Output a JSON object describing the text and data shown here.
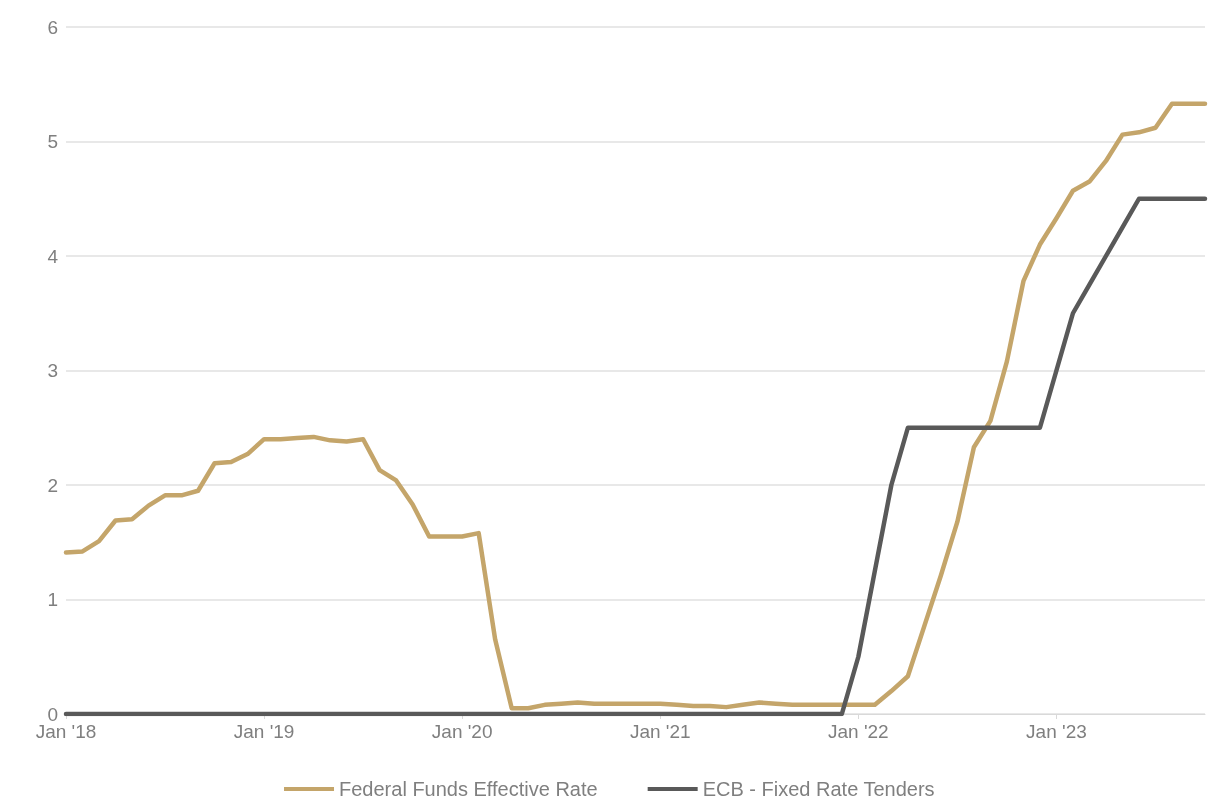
{
  "chart_data": {
    "type": "line",
    "categories": [
      "Jan '18",
      null,
      null,
      null,
      null,
      null,
      null,
      null,
      null,
      null,
      null,
      null,
      "Jan '19",
      null,
      null,
      null,
      null,
      null,
      null,
      null,
      null,
      null,
      null,
      null,
      "Jan '20",
      null,
      null,
      null,
      null,
      null,
      null,
      null,
      null,
      null,
      null,
      null,
      "Jan '21",
      null,
      null,
      null,
      null,
      null,
      null,
      null,
      null,
      null,
      null,
      null,
      "Jan '22",
      null,
      null,
      null,
      null,
      null,
      null,
      null,
      null,
      null,
      null,
      null,
      "Jan '23",
      null,
      null,
      null,
      null,
      null,
      null,
      null,
      null,
      null
    ],
    "series": [
      {
        "name": "Federal Funds Effective Rate",
        "color": "#c4a56a",
        "values": [
          1.41,
          1.42,
          1.51,
          1.69,
          1.7,
          1.82,
          1.91,
          1.91,
          1.95,
          2.19,
          2.2,
          2.27,
          2.4,
          2.4,
          2.41,
          2.42,
          2.39,
          2.38,
          2.4,
          2.13,
          2.04,
          1.83,
          1.55,
          1.55,
          1.55,
          1.58,
          0.65,
          0.05,
          0.05,
          0.08,
          0.09,
          0.1,
          0.09,
          0.09,
          0.09,
          0.09,
          0.09,
          0.08,
          0.07,
          0.07,
          0.06,
          0.08,
          0.1,
          0.09,
          0.08,
          0.08,
          0.08,
          0.08,
          0.08,
          0.08,
          0.2,
          0.33,
          0.77,
          1.21,
          1.68,
          2.33,
          2.56,
          3.08,
          3.78,
          4.1,
          4.33,
          4.57,
          4.65,
          4.83,
          5.06,
          5.08,
          5.12,
          5.33,
          5.33,
          5.33
        ]
      },
      {
        "name": "ECB - Fixed Rate Tenders",
        "color": "#595959",
        "values": [
          0,
          0,
          0,
          0,
          0,
          0,
          0,
          0,
          0,
          0,
          0,
          0,
          0,
          0,
          0,
          0,
          0,
          0,
          0,
          0,
          0,
          0,
          0,
          0,
          0,
          0,
          0,
          0,
          0,
          0,
          0,
          0,
          0,
          0,
          0,
          0,
          0,
          0,
          0,
          0,
          0,
          0,
          0,
          0,
          0,
          0,
          0,
          0,
          0.5,
          1.25,
          2,
          2.5,
          2.5,
          2.5,
          2.5,
          2.5,
          2.5,
          2.5,
          2.5,
          2.5,
          3,
          3.5,
          3.75,
          4,
          4.25,
          4.5,
          4.5,
          4.5,
          4.5,
          4.5
        ]
      }
    ],
    "ylim": [
      0,
      6
    ],
    "yticks": [
      0,
      1,
      2,
      3,
      4,
      5,
      6
    ],
    "grid": "y",
    "legend": "bottom",
    "marker": "none",
    "line_style": "solid"
  }
}
